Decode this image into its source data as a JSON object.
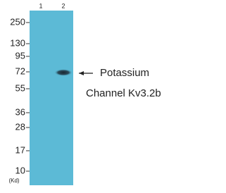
{
  "lanes": [
    "1",
    "2"
  ],
  "markers": [
    "250",
    "130",
    "95",
    "72",
    "55",
    "36",
    "28",
    "17",
    "10"
  ],
  "unit": "(Kd)",
  "annotation": {
    "lines": [
      "Potassium",
      "Channel Kv3.2b"
    ]
  }
}
